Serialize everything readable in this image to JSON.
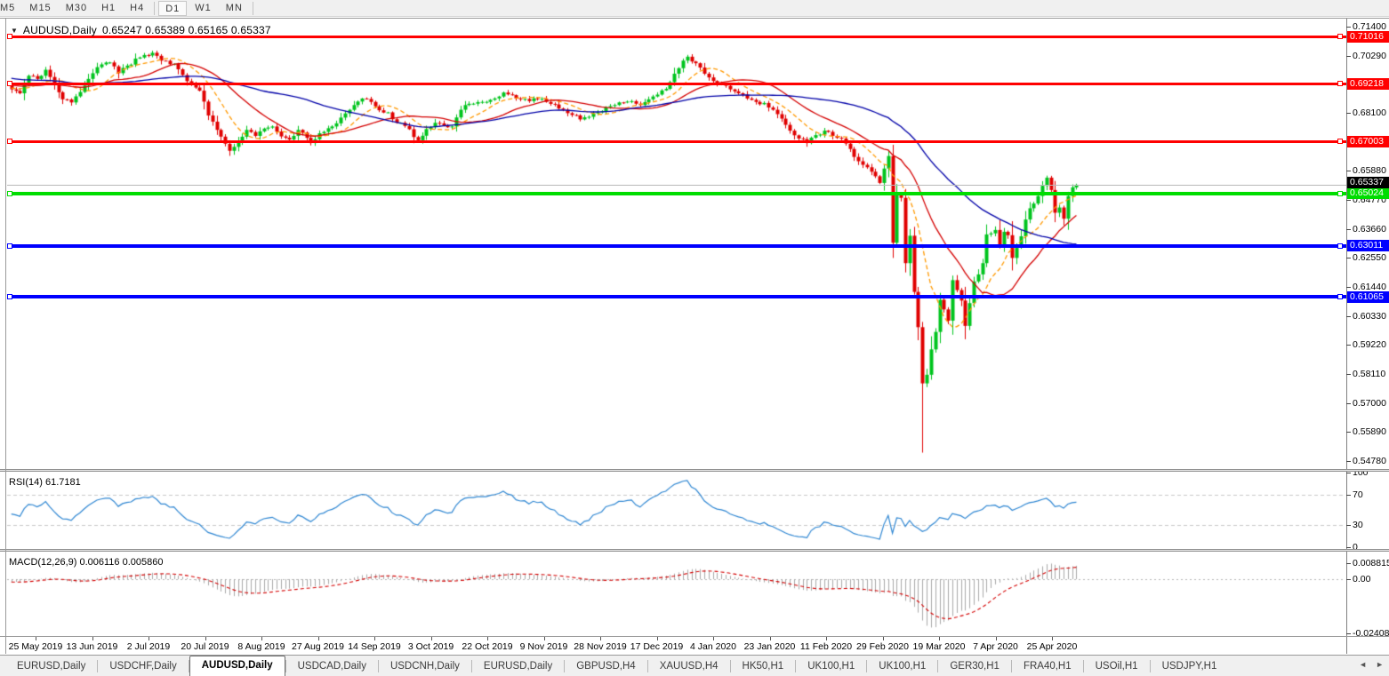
{
  "toolbar": {
    "timeframes": [
      "M5",
      "M15",
      "M30",
      "H1",
      "H4",
      "D1",
      "W1",
      "MN"
    ],
    "active": "D1",
    "separators_after": [
      "H4",
      "MN"
    ]
  },
  "title": {
    "dropdown_icon": "▼",
    "symbol": "AUDUSD,Daily",
    "ohlc": "0.65247 0.65389 0.65165 0.65337"
  },
  "chart_data": {
    "type": "candlestick",
    "symbol": "AUDUSD",
    "timeframe": "Daily",
    "current_ohlc": {
      "open": 0.65247,
      "high": 0.65389,
      "low": 0.65165,
      "close": 0.65337
    },
    "colors": {
      "up": "#00c41e",
      "down": "#e00000",
      "ma_fast": "#ff9900",
      "ma_mid": "#d40000",
      "ma_slow": "#0000a8",
      "rsi_line": "#2e86d2",
      "macd_bars": "#a8a8a8",
      "macd_signal": "#d40000",
      "last_price_line": "#b8b8b8"
    },
    "y_axis": {
      "min": 0.5478,
      "max": 0.714,
      "ticks": [
        "0.71400",
        "0.70290",
        "0.68100",
        "0.65880",
        "0.64770",
        "0.63660",
        "0.62550",
        "0.61440",
        "0.60330",
        "0.59220",
        "0.58110",
        "0.57000",
        "0.55890",
        "0.54780"
      ]
    },
    "x_axis": {
      "labels": [
        "25 May 2019",
        "13 Jun 2019",
        "2 Jul 2019",
        "20 Jul 2019",
        "8 Aug 2019",
        "27 Aug 2019",
        "14 Sep 2019",
        "3 Oct 2019",
        "22 Oct 2019",
        "9 Nov 2019",
        "28 Nov 2019",
        "17 Dec 2019",
        "4 Jan 2020",
        "23 Jan 2020",
        "11 Feb 2020",
        "29 Feb 2020",
        "19 Mar 2020",
        "7 Apr 2020",
        "25 Apr 2020"
      ]
    },
    "hlines": [
      {
        "price": 0.71016,
        "label": "0.71016",
        "color": "#ff0000",
        "width": 3
      },
      {
        "price": 0.69218,
        "label": "0.69218",
        "color": "#ff0000",
        "width": 3
      },
      {
        "price": 0.67003,
        "label": "0.67003",
        "color": "#ff0000",
        "width": 3
      },
      {
        "price": 0.65024,
        "label": "0.65024",
        "color": "#00dd00",
        "width": 4
      },
      {
        "price": 0.63011,
        "label": "0.63011",
        "color": "#0000ff",
        "width": 4
      },
      {
        "price": 0.61065,
        "label": "0.61065",
        "color": "#0000ff",
        "width": 4
      }
    ],
    "last_price": {
      "value": 0.65337,
      "label": "0.65337",
      "label_bg": "#000000"
    },
    "moving_averages": [
      {
        "period": 10,
        "color": "#ff9900",
        "style": "dash"
      },
      {
        "period": 22,
        "color": "#d40000",
        "style": "solid"
      },
      {
        "period": 50,
        "color": "#0000a8",
        "style": "solid"
      }
    ],
    "bars_total": 250,
    "history_warmup": {
      "bars": 60,
      "start_price": 0.701
    },
    "close_anchors": [
      [
        0,
        0.69
      ],
      [
        2,
        0.6885
      ],
      [
        4,
        0.6952
      ],
      [
        6,
        0.694
      ],
      [
        8,
        0.6975
      ],
      [
        10,
        0.692
      ],
      [
        12,
        0.6862
      ],
      [
        14,
        0.685
      ],
      [
        16,
        0.689
      ],
      [
        18,
        0.694
      ],
      [
        20,
        0.6985
      ],
      [
        23,
        0.7003
      ],
      [
        25,
        0.6962
      ],
      [
        27,
        0.6991
      ],
      [
        30,
        0.7022
      ],
      [
        33,
        0.704
      ],
      [
        35,
        0.701
      ],
      [
        38,
        0.6998
      ],
      [
        40,
        0.6955
      ],
      [
        42,
        0.692
      ],
      [
        44,
        0.6895
      ],
      [
        46,
        0.68
      ],
      [
        48,
        0.6745
      ],
      [
        50,
        0.6692
      ],
      [
        51,
        0.6665
      ],
      [
        53,
        0.67
      ],
      [
        55,
        0.6745
      ],
      [
        57,
        0.6722
      ],
      [
        59,
        0.675
      ],
      [
        61,
        0.6758
      ],
      [
        63,
        0.672
      ],
      [
        65,
        0.6708
      ],
      [
        67,
        0.6745
      ],
      [
        70,
        0.6695
      ],
      [
        72,
        0.6732
      ],
      [
        75,
        0.6758
      ],
      [
        77,
        0.6792
      ],
      [
        80,
        0.684
      ],
      [
        82,
        0.6865
      ],
      [
        84,
        0.6852
      ],
      [
        86,
        0.682
      ],
      [
        88,
        0.6812
      ],
      [
        90,
        0.6772
      ],
      [
        92,
        0.676
      ],
      [
        95,
        0.6705
      ],
      [
        97,
        0.6748
      ],
      [
        99,
        0.6772
      ],
      [
        101,
        0.6762
      ],
      [
        103,
        0.6758
      ],
      [
        105,
        0.6822
      ],
      [
        107,
        0.6845
      ],
      [
        110,
        0.6852
      ],
      [
        112,
        0.686
      ],
      [
        115,
        0.6888
      ],
      [
        117,
        0.6878
      ],
      [
        119,
        0.6862
      ],
      [
        121,
        0.6855
      ],
      [
        123,
        0.6862
      ],
      [
        125,
        0.6852
      ],
      [
        127,
        0.6842
      ],
      [
        129,
        0.6822
      ],
      [
        131,
        0.6802
      ],
      [
        133,
        0.6785
      ],
      [
        135,
        0.6795
      ],
      [
        137,
        0.6812
      ],
      [
        139,
        0.6832
      ],
      [
        141,
        0.684
      ],
      [
        143,
        0.685
      ],
      [
        145,
        0.6855
      ],
      [
        147,
        0.684
      ],
      [
        149,
        0.6862
      ],
      [
        151,
        0.688
      ],
      [
        153,
        0.6902
      ],
      [
        155,
        0.696
      ],
      [
        157,
        0.701
      ],
      [
        158,
        0.7025
      ],
      [
        160,
        0.7
      ],
      [
        162,
        0.696
      ],
      [
        164,
        0.6932
      ],
      [
        166,
        0.692
      ],
      [
        168,
        0.69
      ],
      [
        170,
        0.6885
      ],
      [
        172,
        0.6865
      ],
      [
        174,
        0.6852
      ],
      [
        176,
        0.6848
      ],
      [
        178,
        0.6822
      ],
      [
        180,
        0.6788
      ],
      [
        182,
        0.6742
      ],
      [
        184,
        0.6712
      ],
      [
        186,
        0.6695
      ],
      [
        188,
        0.6725
      ],
      [
        190,
        0.6742
      ],
      [
        192,
        0.6722
      ],
      [
        194,
        0.6712
      ],
      [
        196,
        0.6672
      ],
      [
        198,
        0.6625
      ],
      [
        200,
        0.6602
      ],
      [
        201,
        0.6585
      ],
      [
        203,
        0.6542
      ],
      [
        205,
        0.6645
      ],
      [
        206,
        0.6313
      ],
      [
        207,
        0.65
      ],
      [
        208,
        0.6485
      ],
      [
        209,
        0.6235
      ],
      [
        210,
        0.634
      ],
      [
        211,
        0.6125
      ],
      [
        212,
        0.599
      ],
      [
        213,
        0.5775
      ],
      [
        214,
        0.5808
      ],
      [
        215,
        0.5905
      ],
      [
        216,
        0.5972
      ],
      [
        217,
        0.6095
      ],
      [
        218,
        0.6058
      ],
      [
        219,
        0.6015
      ],
      [
        220,
        0.617
      ],
      [
        221,
        0.6132
      ],
      [
        222,
        0.6092
      ],
      [
        223,
        0.5995
      ],
      [
        224,
        0.6082
      ],
      [
        225,
        0.6165
      ],
      [
        226,
        0.6192
      ],
      [
        227,
        0.6235
      ],
      [
        228,
        0.6345
      ],
      [
        230,
        0.6362
      ],
      [
        231,
        0.6302
      ],
      [
        232,
        0.6355
      ],
      [
        233,
        0.6342
      ],
      [
        234,
        0.6255
      ],
      [
        236,
        0.6338
      ],
      [
        237,
        0.6402
      ],
      [
        238,
        0.6445
      ],
      [
        240,
        0.6492
      ],
      [
        242,
        0.6562
      ],
      [
        243,
        0.6515
      ],
      [
        244,
        0.6428
      ],
      [
        245,
        0.6448
      ],
      [
        246,
        0.6405
      ],
      [
        247,
        0.6492
      ],
      [
        248,
        0.6525
      ],
      [
        249,
        0.65337
      ]
    ],
    "candle_overrides": {
      "33": {
        "high": 0.7048
      },
      "158": {
        "high": 0.7032
      },
      "206": {
        "low": 0.6255
      },
      "213": {
        "low": 0.551
      },
      "242": {
        "high": 0.657
      },
      "249": {
        "open": 0.65247,
        "high": 0.65389,
        "low": 0.65165
      }
    }
  },
  "rsi": {
    "label": "RSI(14) 61.7181",
    "period": 14,
    "value": 61.7181,
    "range": [
      0,
      100
    ],
    "ticks": [
      "100",
      "70",
      "30",
      "0"
    ],
    "tick_values": [
      100,
      70,
      30,
      0
    ],
    "levels": [
      70,
      30
    ]
  },
  "macd": {
    "label": "MACD(12,26,9) 0.006116 0.005860",
    "params": [
      12,
      26,
      9
    ],
    "main_value": 0.006116,
    "signal_value": 0.00586,
    "ticks": [
      "0.008815",
      "0.00",
      "-0.02408"
    ],
    "tick_values": [
      0.008815,
      0,
      -0.02408
    ]
  },
  "tabs": {
    "items": [
      "EURUSD,Daily",
      "USDCHF,Daily",
      "AUDUSD,Daily",
      "USDCAD,Daily",
      "USDCNH,Daily",
      "EURUSD,Daily",
      "GBPUSD,H4",
      "XAUUSD,H4",
      "HK50,H1",
      "UK100,H1",
      "UK100,H1",
      "GER30,H1",
      "FRA40,H1",
      "USOil,H1",
      "USDJPY,H1"
    ],
    "active_index": 2,
    "scroll_left_icon": "◄",
    "scroll_right_icon": "►"
  }
}
